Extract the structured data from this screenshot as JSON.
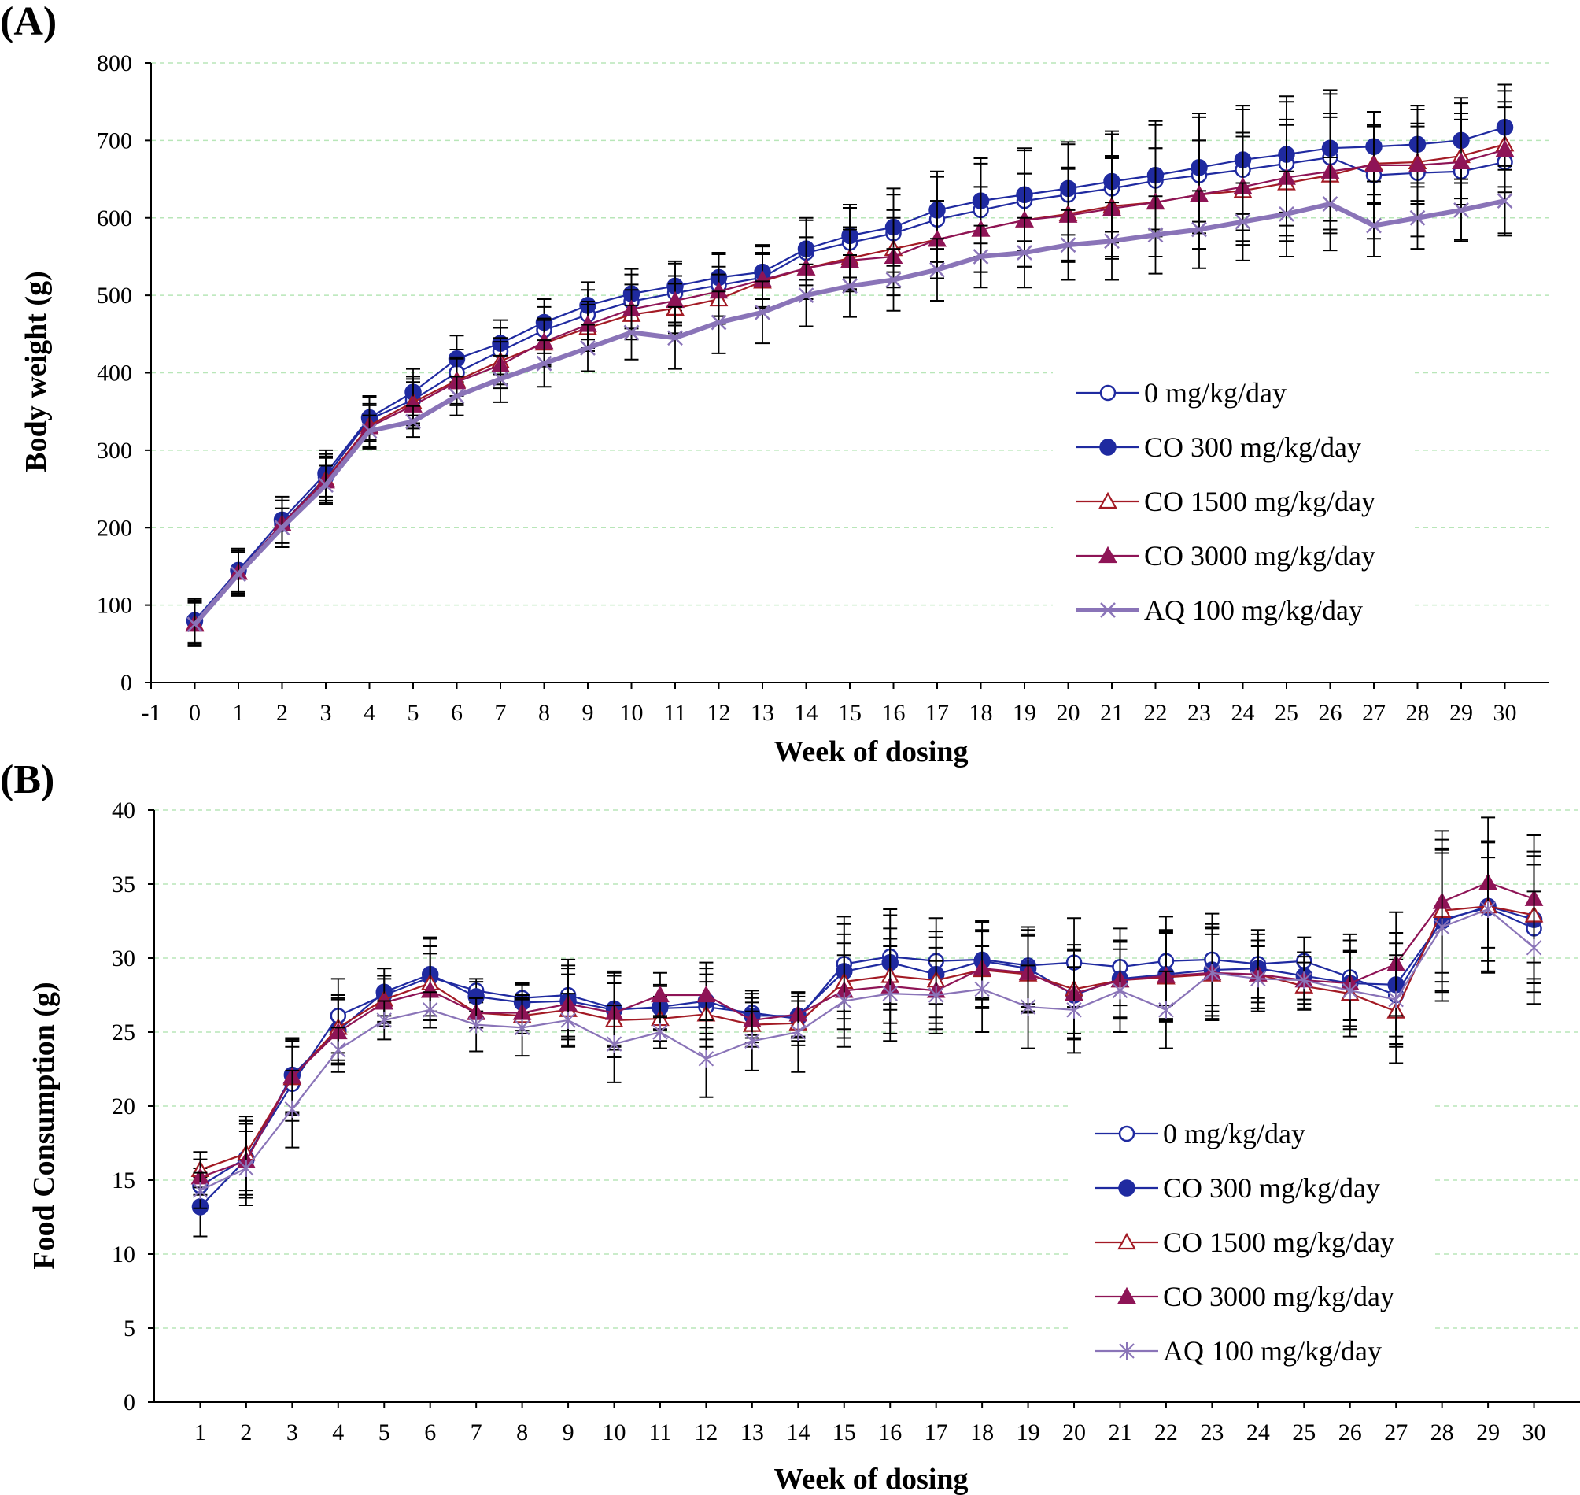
{
  "chart_data": [
    {
      "type": "line",
      "panel": "(A)",
      "ylabel": "Body weight (g)",
      "xlabel": "Week of dosing",
      "xlim": [
        -1,
        31
      ],
      "ylim": [
        0,
        800
      ],
      "x_ticks": [
        "-1",
        "0",
        "1",
        "2",
        "3",
        "4",
        "5",
        "6",
        "7",
        "8",
        "9",
        "10",
        "11",
        "12",
        "13",
        "14",
        "15",
        "16",
        "17",
        "18",
        "19",
        "20",
        "21",
        "22",
        "23",
        "24",
        "25",
        "26",
        "27",
        "28",
        "29",
        "30"
      ],
      "y_ticks": [
        "0",
        "100",
        "200",
        "300",
        "400",
        "500",
        "600",
        "700",
        "800"
      ],
      "grid": "horizontal dashed",
      "legend_position": "right-middle",
      "x": [
        0,
        1,
        2,
        3,
        4,
        5,
        6,
        7,
        8,
        9,
        10,
        11,
        12,
        13,
        14,
        15,
        16,
        17,
        18,
        19,
        20,
        21,
        22,
        23,
        24,
        25,
        26,
        27,
        28,
        29,
        30
      ],
      "series": [
        {
          "name": "0 mg/kg/day",
          "color": "#1f2aa0",
          "marker": "circle-open",
          "values": [
            78,
            143,
            205,
            265,
            340,
            365,
            400,
            428,
            455,
            475,
            492,
            503,
            513,
            523,
            555,
            568,
            580,
            598,
            610,
            622,
            630,
            638,
            648,
            655,
            662,
            670,
            678,
            655,
            658,
            660,
            672
          ],
          "errors": [
            28,
            28,
            30,
            30,
            28,
            30,
            30,
            30,
            30,
            32,
            35,
            38,
            40,
            40,
            42,
            45,
            50,
            55,
            60,
            65,
            65,
            70,
            72,
            75,
            78,
            80,
            82,
            82,
            82,
            88,
            92
          ]
        },
        {
          "name": "CO 300 mg/kg/day",
          "color": "#1f2aa0",
          "marker": "circle-filled",
          "values": [
            80,
            145,
            210,
            270,
            342,
            375,
            418,
            438,
            465,
            487,
            502,
            512,
            523,
            530,
            560,
            577,
            588,
            610,
            622,
            630,
            638,
            647,
            655,
            665,
            675,
            682,
            690,
            692,
            695,
            700,
            717
          ],
          "errors": [
            28,
            28,
            30,
            30,
            28,
            30,
            30,
            30,
            30,
            30,
            32,
            32,
            32,
            35,
            40,
            40,
            50,
            50,
            55,
            60,
            60,
            65,
            70,
            70,
            70,
            75,
            75,
            45,
            50,
            55,
            55
          ]
        },
        {
          "name": "CO 1500 mg/kg/day",
          "color": "#a31a24",
          "marker": "triangle-open",
          "values": [
            76,
            142,
            205,
            262,
            332,
            362,
            390,
            415,
            438,
            458,
            475,
            483,
            495,
            518,
            535,
            548,
            560,
            572,
            585,
            597,
            605,
            615,
            620,
            630,
            635,
            645,
            655,
            670,
            672,
            680,
            695
          ],
          "errors": [
            28,
            28,
            30,
            30,
            28,
            30,
            30,
            30,
            30,
            30,
            32,
            32,
            32,
            35,
            40,
            40,
            50,
            50,
            55,
            60,
            60,
            65,
            70,
            70,
            70,
            75,
            75,
            50,
            50,
            55,
            55
          ]
        },
        {
          "name": "CO 3000 mg/kg/day",
          "color": "#8e1456",
          "marker": "triangle-filled",
          "values": [
            75,
            142,
            205,
            260,
            330,
            358,
            388,
            410,
            440,
            462,
            482,
            493,
            505,
            520,
            535,
            545,
            550,
            572,
            585,
            597,
            603,
            612,
            620,
            630,
            640,
            652,
            660,
            668,
            668,
            672,
            688
          ],
          "errors": [
            28,
            28,
            30,
            30,
            28,
            30,
            30,
            30,
            30,
            30,
            32,
            32,
            32,
            35,
            40,
            40,
            50,
            50,
            55,
            60,
            60,
            65,
            70,
            70,
            70,
            75,
            75,
            50,
            50,
            55,
            55
          ]
        },
        {
          "name": "AQ 100 mg/kg/day",
          "color": "#8a74b8",
          "marker": "x",
          "thick": true,
          "values": [
            75,
            140,
            200,
            255,
            325,
            337,
            370,
            392,
            412,
            432,
            452,
            445,
            465,
            478,
            500,
            512,
            520,
            533,
            550,
            555,
            565,
            570,
            578,
            585,
            595,
            605,
            618,
            590,
            600,
            610,
            622
          ],
          "errors": [
            28,
            28,
            25,
            25,
            20,
            20,
            25,
            30,
            30,
            30,
            35,
            40,
            40,
            40,
            40,
            40,
            40,
            40,
            40,
            45,
            45,
            50,
            50,
            50,
            50,
            55,
            60,
            40,
            40,
            40,
            45
          ]
        }
      ]
    },
    {
      "type": "line",
      "panel": "(B)",
      "ylabel": "Food Consumption (g)",
      "xlabel": "Week of dosing",
      "xlim": [
        0,
        31
      ],
      "ylim": [
        0,
        40
      ],
      "x_ticks": [
        "1",
        "2",
        "3",
        "4",
        "5",
        "6",
        "7",
        "8",
        "9",
        "10",
        "11",
        "12",
        "13",
        "14",
        "15",
        "16",
        "17",
        "18",
        "19",
        "20",
        "21",
        "22",
        "23",
        "24",
        "25",
        "26",
        "27",
        "28",
        "29",
        "30"
      ],
      "y_ticks": [
        "0",
        "5",
        "10",
        "15",
        "20",
        "25",
        "30",
        "35",
        "40"
      ],
      "grid": "horizontal dashed",
      "legend_position": "right-middle",
      "x": [
        1,
        2,
        3,
        4,
        5,
        6,
        7,
        8,
        9,
        10,
        11,
        12,
        13,
        14,
        15,
        16,
        17,
        18,
        19,
        20,
        21,
        22,
        23,
        24,
        25,
        26,
        27,
        28,
        29,
        30
      ],
      "series": [
        {
          "name": "0 mg/kg/day",
          "color": "#1f2aa0",
          "marker": "circle-open",
          "values": [
            14.6,
            16.5,
            21.5,
            26.1,
            27.5,
            28.7,
            27.8,
            27.3,
            27.5,
            26.6,
            26.6,
            26.7,
            26.3,
            25.9,
            29.6,
            30.1,
            29.8,
            29.9,
            29.5,
            29.7,
            29.4,
            29.8,
            29.9,
            29.6,
            29.8,
            28.7,
            27.5,
            32.6,
            33.4,
            32.0
          ],
          "errors": [
            1.2,
            2.5,
            2.5,
            2.5,
            1.8,
            2.6,
            0.8,
            1.0,
            2.4,
            2.5,
            1.5,
            2.2,
            1.5,
            1.5,
            3.2,
            3.2,
            2.9,
            2.6,
            2.6,
            3.0,
            2.6,
            3.0,
            3.1,
            2.3,
            1.6,
            2.9,
            3.5,
            4.8,
            4.4,
            4.3
          ]
        },
        {
          "name": "CO 300 mg/kg/day",
          "color": "#1f2aa0",
          "marker": "circle-filled",
          "values": [
            13.2,
            16.4,
            22.1,
            25.1,
            27.7,
            28.9,
            27.4,
            27.0,
            27.1,
            26.5,
            26.7,
            27.1,
            26.1,
            26.1,
            29.1,
            29.7,
            28.9,
            29.8,
            29.3,
            27.5,
            28.6,
            28.9,
            29.2,
            29.3,
            28.8,
            28.3,
            28.2,
            32.5,
            33.5,
            32.6
          ],
          "errors": [
            2.0,
            2.6,
            2.5,
            2.2,
            1.6,
            2.5,
            1.0,
            1.2,
            2.4,
            2.5,
            1.5,
            2.2,
            1.5,
            1.5,
            3.2,
            3.2,
            2.9,
            2.6,
            2.6,
            3.0,
            2.6,
            3.0,
            3.1,
            2.3,
            1.6,
            2.9,
            3.5,
            4.8,
            4.4,
            4.3
          ]
        },
        {
          "name": "CO 1500 mg/kg/day",
          "color": "#a31a24",
          "marker": "triangle-open",
          "values": [
            15.7,
            16.8,
            21.9,
            25.3,
            27.2,
            28.3,
            26.3,
            26.1,
            26.5,
            25.8,
            25.9,
            26.2,
            25.5,
            25.6,
            28.4,
            28.8,
            28.5,
            29.2,
            28.9,
            27.9,
            28.5,
            28.7,
            28.9,
            28.9,
            28.1,
            27.6,
            26.4,
            33.2,
            33.5,
            32.9
          ],
          "errors": [
            1.2,
            2.5,
            2.5,
            2.2,
            1.6,
            2.5,
            1.0,
            1.2,
            2.4,
            2.5,
            1.5,
            2.2,
            1.5,
            1.5,
            3.2,
            3.2,
            2.9,
            2.6,
            2.6,
            3.0,
            2.6,
            3.0,
            3.1,
            2.3,
            1.6,
            2.9,
            3.5,
            4.8,
            4.4,
            4.3
          ]
        },
        {
          "name": "CO 3000 mg/kg/day",
          "color": "#8e1456",
          "marker": "triangle-filled",
          "values": [
            15.2,
            16.3,
            22.0,
            25.0,
            27.0,
            27.8,
            26.3,
            26.3,
            26.9,
            26.3,
            27.5,
            27.5,
            25.8,
            26.2,
            27.8,
            28.1,
            27.8,
            29.3,
            29.0,
            27.6,
            28.5,
            28.8,
            29.0,
            28.9,
            28.5,
            28.3,
            29.6,
            33.8,
            35.1,
            34.0
          ],
          "errors": [
            1.2,
            2.5,
            2.5,
            2.2,
            1.6,
            2.5,
            1.0,
            1.2,
            2.4,
            2.5,
            1.5,
            2.2,
            1.5,
            1.5,
            3.2,
            3.2,
            2.9,
            2.6,
            2.6,
            3.0,
            2.6,
            3.0,
            3.1,
            2.3,
            1.6,
            2.9,
            3.5,
            4.8,
            4.4,
            4.3
          ]
        },
        {
          "name": "AQ 100 mg/kg/day",
          "color": "#8a74b8",
          "marker": "asterisk",
          "values": [
            14.3,
            15.8,
            19.8,
            23.8,
            25.8,
            26.5,
            25.5,
            25.3,
            25.8,
            24.2,
            25.0,
            23.2,
            24.4,
            25.0,
            27.1,
            27.6,
            27.5,
            27.9,
            26.7,
            26.5,
            27.8,
            26.5,
            29.0,
            28.6,
            28.5,
            27.8,
            27.2,
            32.1,
            33.3,
            30.7
          ],
          "errors": [
            1.2,
            2.5,
            2.6,
            1.5,
            1.3,
            1.2,
            1.8,
            1.9,
            1.8,
            2.6,
            1.1,
            2.6,
            2.0,
            2.7,
            3.1,
            3.2,
            2.3,
            2.9,
            2.8,
            2.9,
            2.8,
            2.6,
            2.6,
            2.2,
            1.9,
            2.6,
            3.0,
            5.0,
            3.5,
            3.8
          ]
        }
      ]
    }
  ]
}
